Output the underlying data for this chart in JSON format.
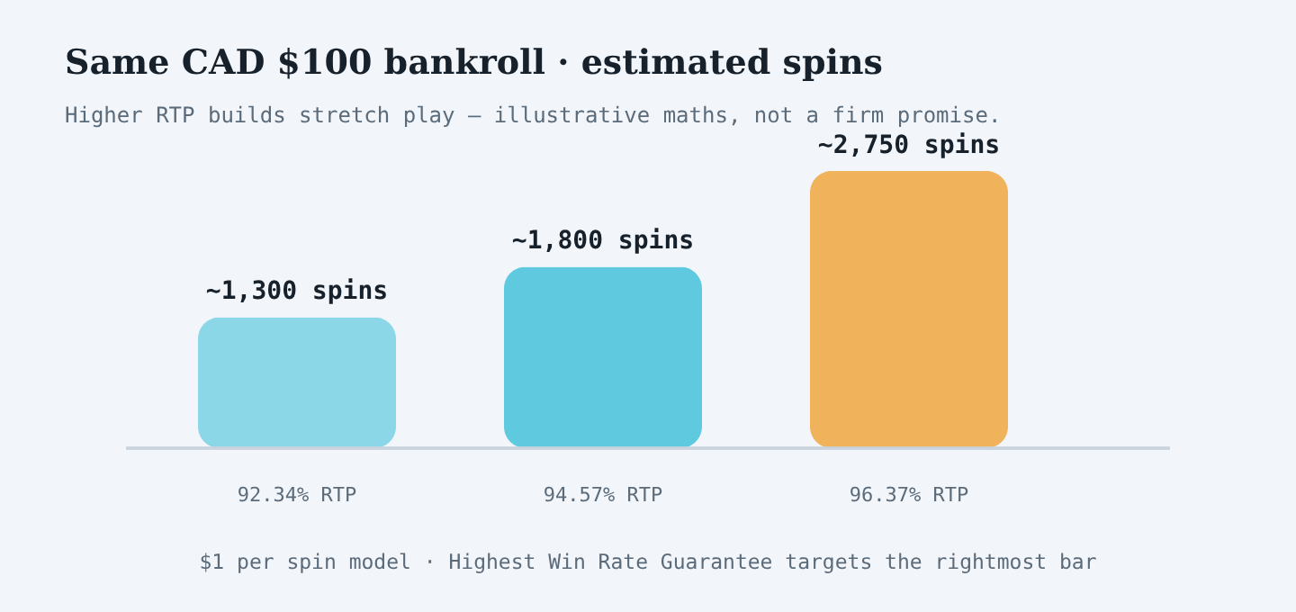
{
  "chart_data": {
    "type": "bar",
    "title": "Same CAD $100 bankroll · estimated spins",
    "subtitle": "Higher RTP builds stretch play — illustrative maths, not a firm promise.",
    "categories": [
      "92.34% RTP",
      "94.57% RTP",
      "96.37% RTP"
    ],
    "values": [
      1300,
      1800,
      2750
    ],
    "colors": [
      "#8bd7e8",
      "#5ec9df",
      "#f0b35c"
    ],
    "value_labels": [
      "~1,300 spins",
      "~1,800 spins",
      "~2,750 spins"
    ],
    "annotations": [
      "$1 per spin model · Highest Win Rate Guarantee targets the rightmost bar"
    ]
  }
}
